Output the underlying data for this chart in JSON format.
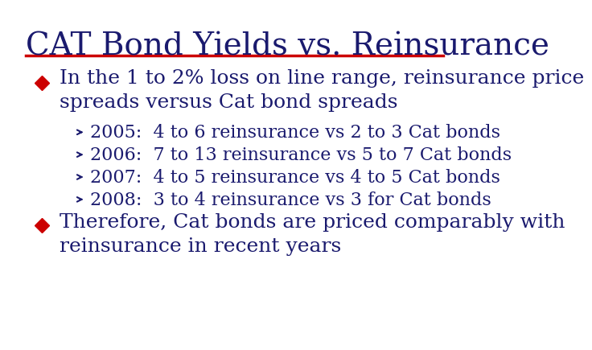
{
  "title": "CAT Bond Yields vs. Reinsurance",
  "title_color": "#1a1a6e",
  "title_fontsize": 28,
  "separator_color": "#cc0000",
  "background_color": "#ffffff",
  "bullet_color": "#cc0000",
  "arrow_color": "#1a1a6e",
  "text_color": "#1a1a6e",
  "bullet1_line1": "In the 1 to 2% loss on line range, reinsurance price",
  "bullet1_line2": "spreads versus Cat bond spreads",
  "sub_bullets": [
    "2005:  4 to 6 reinsurance vs 2 to 3 Cat bonds",
    "2006:  7 to 13 reinsurance vs 5 to 7 Cat bonds",
    "2007:  4 to 5 reinsurance vs 4 to 5 Cat bonds",
    "2008:  3 to 4 reinsurance vs 3 for Cat bonds"
  ],
  "bullet2_line1": "Therefore, Cat bonds are priced comparably with",
  "bullet2_line2": "reinsurance in recent years",
  "main_bullet_fontsize": 18,
  "sub_bullet_fontsize": 16
}
